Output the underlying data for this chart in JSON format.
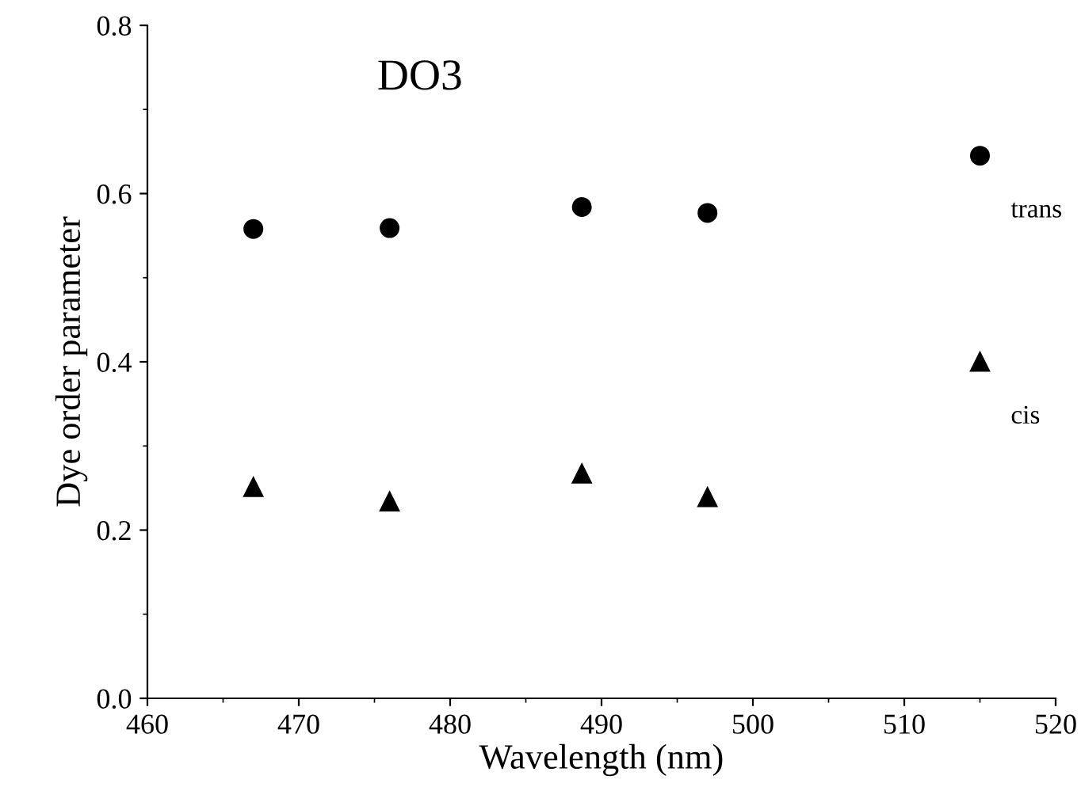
{
  "chart_data": {
    "type": "scatter",
    "title": "DO3",
    "xlabel": "Wavelength (nm)",
    "ylabel": "Dye order parameter",
    "x": [
      467,
      476,
      488.7,
      497,
      515
    ],
    "series": [
      {
        "name": "trans",
        "color": "#000000",
        "marker": "circle",
        "values": [
          0.558,
          0.559,
          0.584,
          0.577,
          0.645
        ]
      },
      {
        "name": "cis",
        "color": "#000000",
        "marker": "triangle",
        "values": [
          0.251,
          0.234,
          0.267,
          0.239,
          0.4
        ]
      }
    ],
    "xlim": [
      460,
      520
    ],
    "xticks": [
      460,
      470,
      480,
      490,
      500,
      510,
      520
    ],
    "ylim": [
      0,
      0.8
    ],
    "yticks": [
      {
        "value": 0,
        "label": "0.0"
      },
      {
        "value": 0.2,
        "label": "0.2"
      },
      {
        "value": 0.4,
        "label": "0.4"
      },
      {
        "value": 0.6,
        "label": "0.6"
      },
      {
        "value": 0.8,
        "label": "0.8"
      }
    ],
    "grid": false,
    "legend": false
  }
}
